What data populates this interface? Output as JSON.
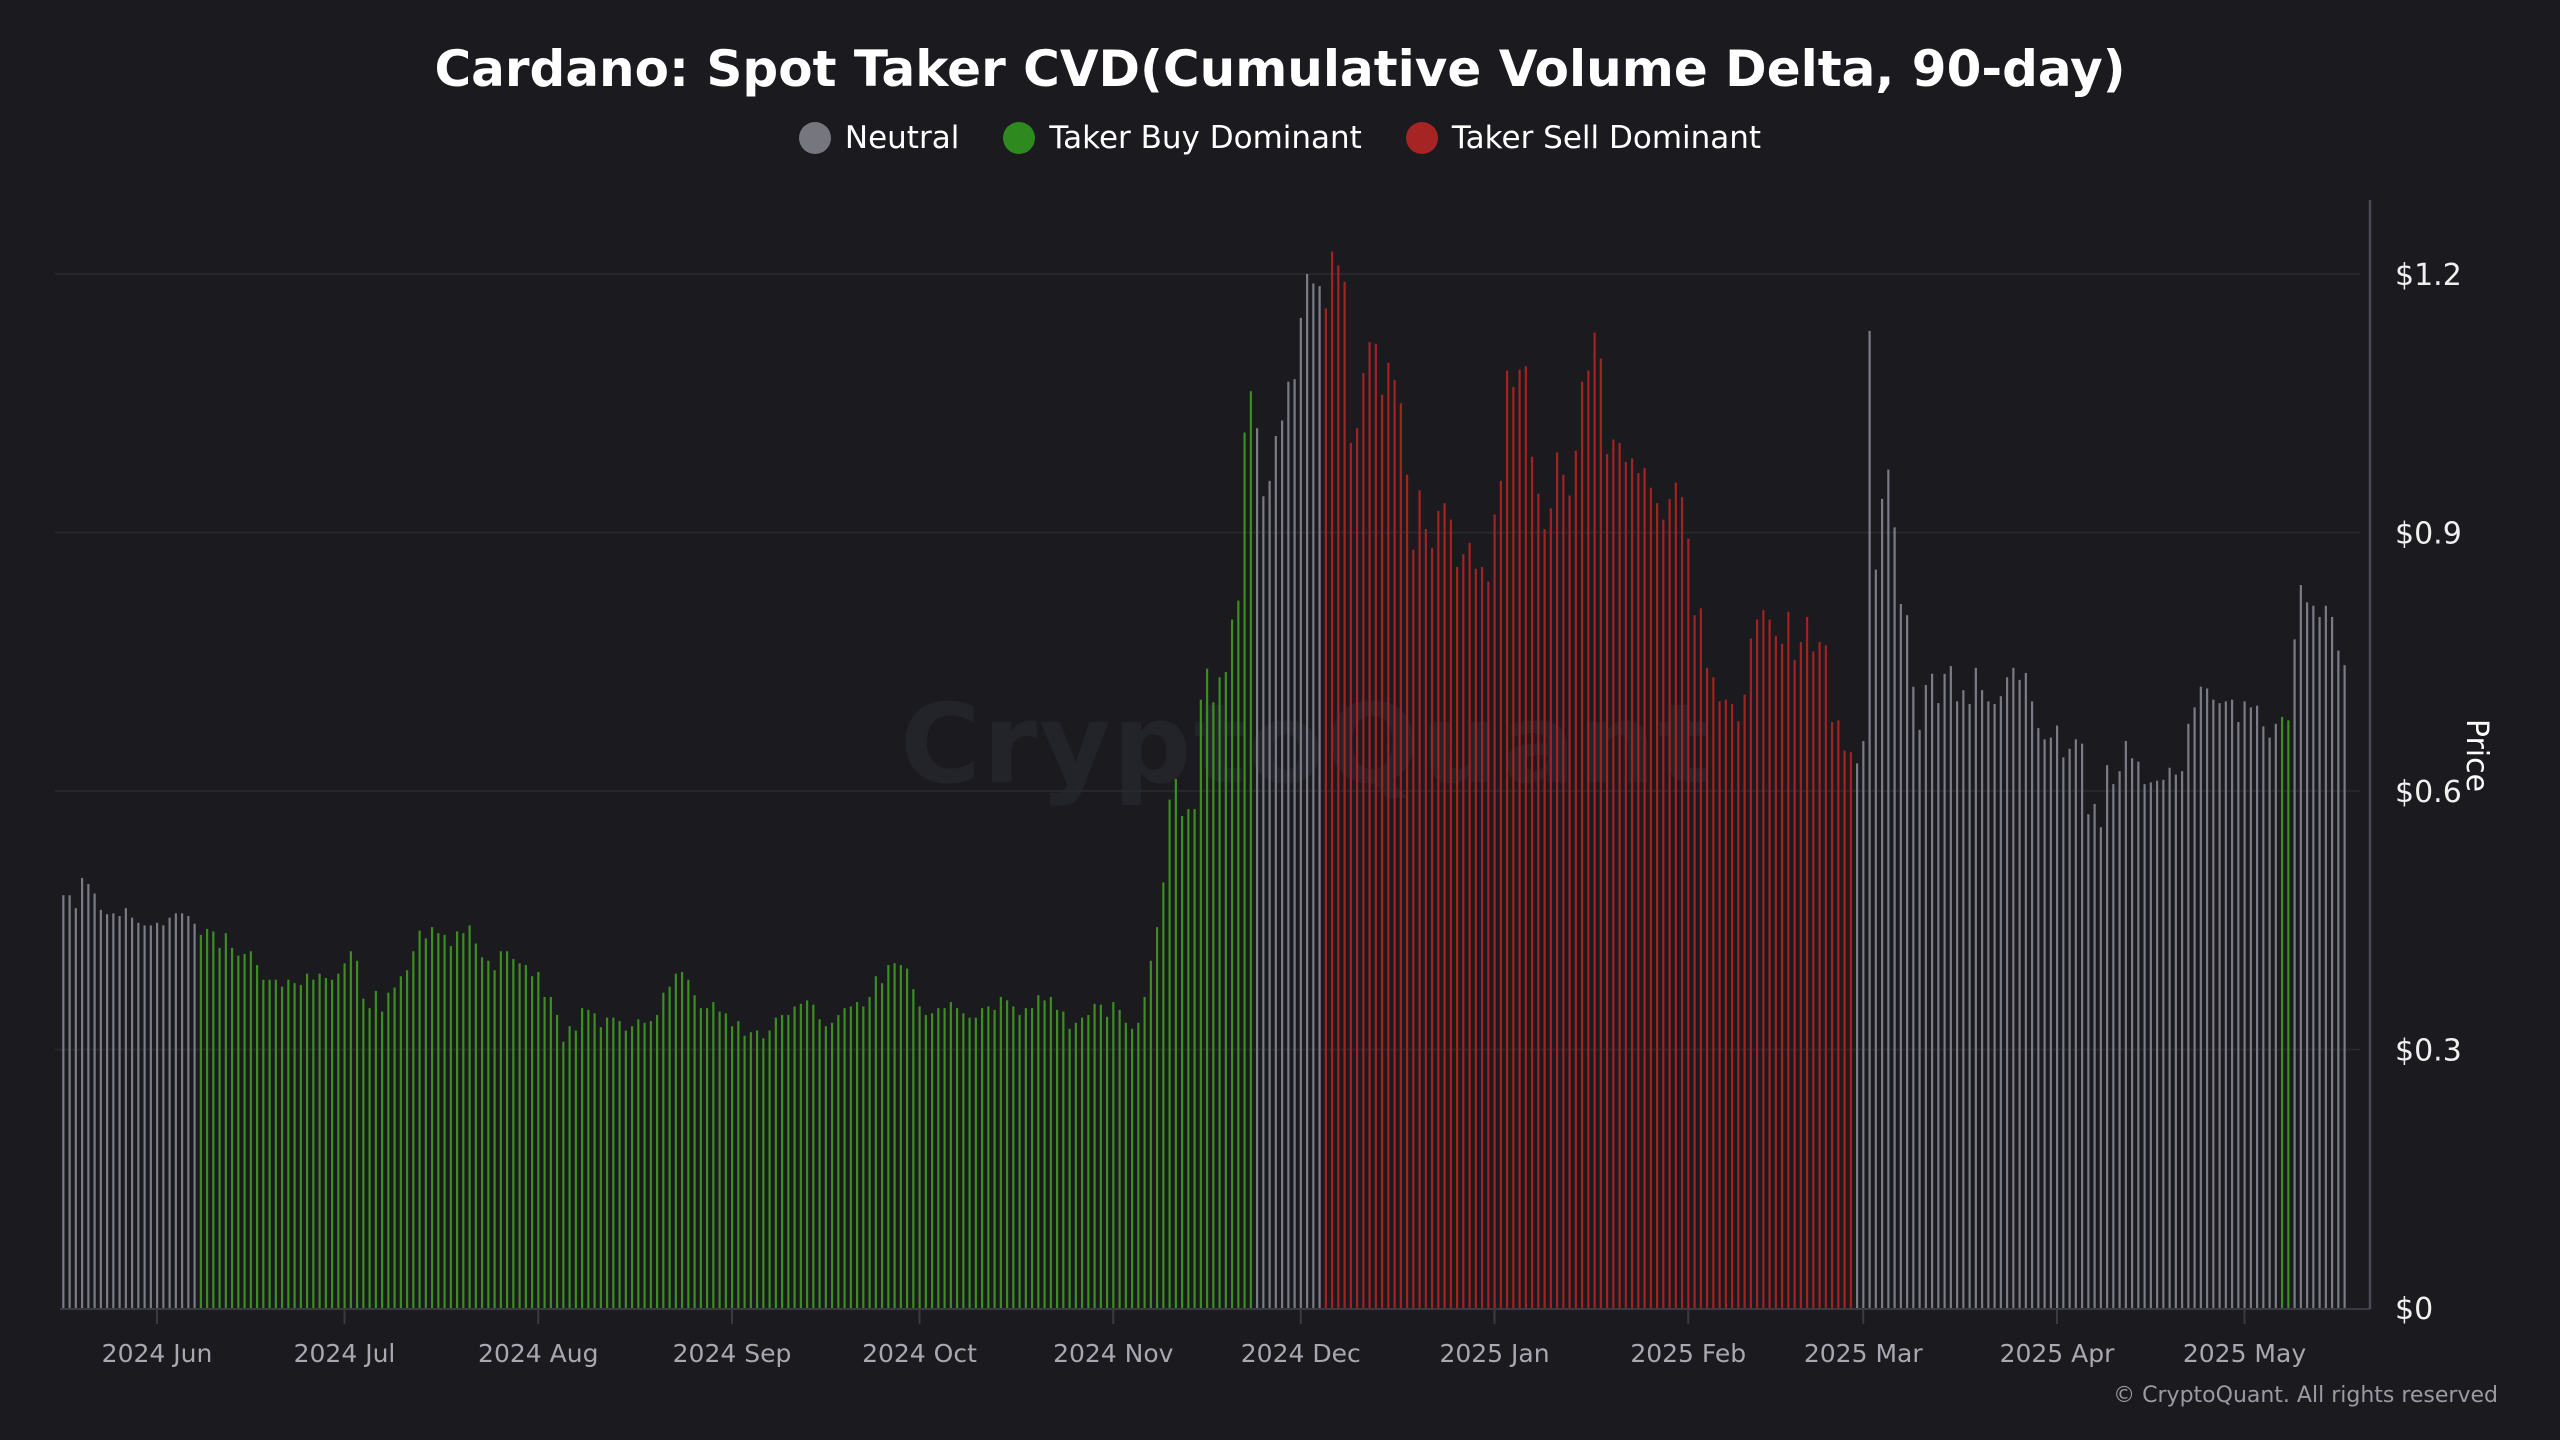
{
  "chart_data": {
    "type": "bar",
    "title": "Cardano: Spot Taker CVD(Cumulative Volume Delta, 90-day)",
    "ylabel": "Price",
    "y_ticks": [
      "$0",
      "$0.3",
      "$0.6",
      "$0.9",
      "$1.2"
    ],
    "y_tick_values": [
      0,
      0.3,
      0.6,
      0.9,
      1.2
    ],
    "ylim": [
      0,
      1.29
    ],
    "grid": "horizontal",
    "legend_placement": "top-center",
    "legend": [
      {
        "key": "neutral",
        "label": "Neutral",
        "color": "#76767f"
      },
      {
        "key": "buy",
        "label": "Taker Buy Dominant",
        "color": "#2e8a1e"
      },
      {
        "key": "sell",
        "label": "Taker Sell Dominant",
        "color": "#a62424"
      }
    ],
    "bar_colors": {
      "neutral": "#7b7b85",
      "buy": "#3b8f1f",
      "sell": "#a52222"
    },
    "x_ticks": [
      {
        "label": "2024 Jun",
        "date": "2024-06-01"
      },
      {
        "label": "2024 Jul",
        "date": "2024-07-01"
      },
      {
        "label": "2024 Aug",
        "date": "2024-08-01"
      },
      {
        "label": "2024 Sep",
        "date": "2024-09-01"
      },
      {
        "label": "2024 Oct",
        "date": "2024-10-01"
      },
      {
        "label": "2024 Nov",
        "date": "2024-11-01"
      },
      {
        "label": "2024 Dec",
        "date": "2024-12-01"
      },
      {
        "label": "2025 Jan",
        "date": "2025-01-01"
      },
      {
        "label": "2025 Feb",
        "date": "2025-02-01"
      },
      {
        "label": "2025 Mar",
        "date": "2025-03-01"
      },
      {
        "label": "2025 Apr",
        "date": "2025-04-01"
      },
      {
        "label": "2025 May",
        "date": "2025-05-01"
      }
    ],
    "x": {
      "start": "2024-05-17",
      "end": "2025-05-17",
      "interval": "1 day"
    },
    "regimes": [
      {
        "regime": "neutral",
        "from": "2024-05-17",
        "to": "2024-06-07"
      },
      {
        "regime": "buy",
        "from": "2024-06-08",
        "to": "2024-11-23"
      },
      {
        "regime": "neutral",
        "from": "2024-11-24",
        "to": "2024-12-04"
      },
      {
        "regime": "sell",
        "from": "2024-12-05",
        "to": "2025-02-27"
      },
      {
        "regime": "neutral",
        "from": "2025-02-28",
        "to": "2025-05-06"
      },
      {
        "regime": "buy",
        "from": "2025-05-07",
        "to": "2025-05-08"
      },
      {
        "regime": "neutral",
        "from": "2025-05-09",
        "to": "2025-05-17"
      }
    ],
    "values": [
      0.479,
      0.479,
      0.464,
      0.499,
      0.492,
      0.481,
      0.462,
      0.457,
      0.458,
      0.455,
      0.464,
      0.453,
      0.447,
      0.444,
      0.444,
      0.447,
      0.444,
      0.453,
      0.458,
      0.458,
      0.455,
      0.446,
      0.433,
      0.44,
      0.437,
      0.418,
      0.435,
      0.418,
      0.409,
      0.411,
      0.414,
      0.398,
      0.381,
      0.381,
      0.381,
      0.373,
      0.381,
      0.377,
      0.375,
      0.388,
      0.381,
      0.388,
      0.383,
      0.381,
      0.388,
      0.4,
      0.414,
      0.403,
      0.359,
      0.348,
      0.368,
      0.344,
      0.366,
      0.372,
      0.385,
      0.392,
      0.414,
      0.438,
      0.429,
      0.442,
      0.435,
      0.433,
      0.42,
      0.437,
      0.435,
      0.444,
      0.423,
      0.407,
      0.403,
      0.392,
      0.414,
      0.414,
      0.405,
      0.4,
      0.398,
      0.385,
      0.39,
      0.361,
      0.361,
      0.34,
      0.309,
      0.327,
      0.322,
      0.348,
      0.346,
      0.342,
      0.326,
      0.337,
      0.337,
      0.333,
      0.322,
      0.327,
      0.335,
      0.331,
      0.333,
      0.34,
      0.366,
      0.373,
      0.388,
      0.39,
      0.381,
      0.363,
      0.348,
      0.348,
      0.355,
      0.344,
      0.342,
      0.327,
      0.333,
      0.316,
      0.32,
      0.322,
      0.313,
      0.322,
      0.337,
      0.34,
      0.34,
      0.35,
      0.353,
      0.357,
      0.352,
      0.335,
      0.327,
      0.331,
      0.34,
      0.348,
      0.35,
      0.355,
      0.35,
      0.361,
      0.385,
      0.377,
      0.398,
      0.4,
      0.398,
      0.394,
      0.37,
      0.35,
      0.34,
      0.342,
      0.348,
      0.348,
      0.355,
      0.348,
      0.342,
      0.337,
      0.337,
      0.348,
      0.35,
      0.346,
      0.361,
      0.357,
      0.35,
      0.34,
      0.348,
      0.348,
      0.363,
      0.357,
      0.361,
      0.346,
      0.344,
      0.324,
      0.331,
      0.337,
      0.34,
      0.353,
      0.352,
      0.338,
      0.355,
      0.346,
      0.331,
      0.324,
      0.331,
      0.361,
      0.403,
      0.442,
      0.494,
      0.59,
      0.614,
      0.571,
      0.579,
      0.579,
      0.706,
      0.742,
      0.703,
      0.732,
      0.738,
      0.799,
      0.821,
      1.016,
      1.064,
      1.021,
      0.942,
      0.96,
      1.012,
      1.03,
      1.075,
      1.078,
      1.149,
      1.2,
      1.189,
      1.186,
      1.16,
      1.226,
      1.21,
      1.191,
      1.004,
      1.021,
      1.085,
      1.121,
      1.119,
      1.06,
      1.097,
      1.077,
      1.05,
      0.967,
      0.88,
      0.949,
      0.904,
      0.882,
      0.925,
      0.934,
      0.915,
      0.86,
      0.875,
      0.888,
      0.858,
      0.86,
      0.843,
      0.921,
      0.96,
      1.088,
      1.069,
      1.089,
      1.093,
      0.988,
      0.945,
      0.904,
      0.928,
      0.993,
      0.967,
      0.943,
      0.995,
      1.075,
      1.088,
      1.132,
      1.102,
      0.991,
      1.008,
      1.004,
      0.982,
      0.986,
      0.969,
      0.975,
      0.952,
      0.934,
      0.915,
      0.939,
      0.958,
      0.941,
      0.893,
      0.804,
      0.812,
      0.743,
      0.732,
      0.704,
      0.706,
      0.701,
      0.681,
      0.712,
      0.777,
      0.799,
      0.81,
      0.799,
      0.78,
      0.771,
      0.808,
      0.752,
      0.773,
      0.802,
      0.762,
      0.773,
      0.769,
      0.68,
      0.682,
      0.647,
      0.645,
      0.632,
      0.658,
      1.134,
      0.857,
      0.939,
      0.973,
      0.906,
      0.817,
      0.804,
      0.721,
      0.671,
      0.723,
      0.736,
      0.702,
      0.736,
      0.745,
      0.704,
      0.717,
      0.701,
      0.743,
      0.717,
      0.704,
      0.701,
      0.71,
      0.732,
      0.743,
      0.729,
      0.737,
      0.704,
      0.673,
      0.66,
      0.662,
      0.676,
      0.639,
      0.649,
      0.66,
      0.655,
      0.573,
      0.585,
      0.558,
      0.63,
      0.608,
      0.623,
      0.658,
      0.638,
      0.634,
      0.608,
      0.61,
      0.612,
      0.613,
      0.627,
      0.619,
      0.623,
      0.678,
      0.697,
      0.721,
      0.719,
      0.706,
      0.702,
      0.704,
      0.706,
      0.68,
      0.704,
      0.697,
      0.699,
      0.675,
      0.662,
      0.678,
      0.686,
      0.682,
      0.776,
      0.839,
      0.819,
      0.815,
      0.802,
      0.815,
      0.802,
      0.763,
      0.746
    ]
  },
  "watermark": "CryptoQuant",
  "copyright": "© CryptoQuant. All rights reserved"
}
